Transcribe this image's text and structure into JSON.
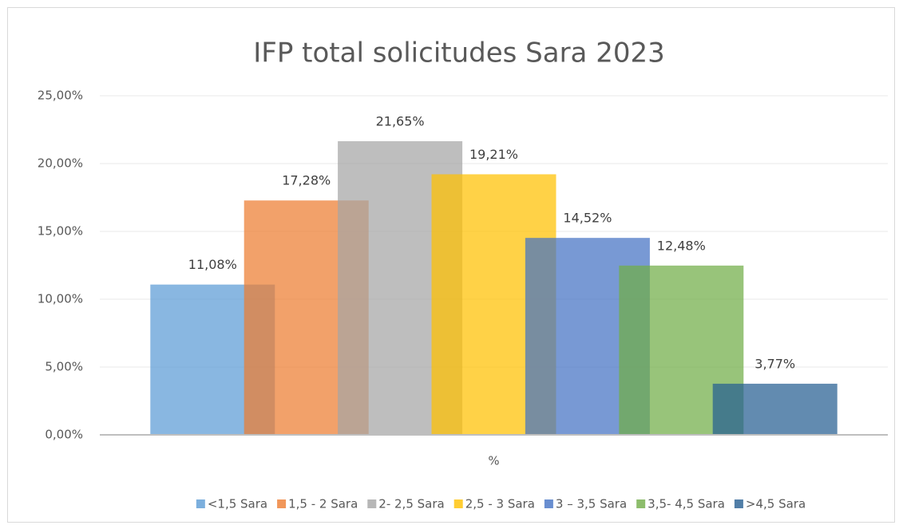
{
  "chart_data": {
    "type": "bar",
    "title": "IFP total solicitudes Sara 2023",
    "categories": [
      "%"
    ],
    "series": [
      {
        "name": "<1,5 Sara",
        "color": "#5b9bd5",
        "values": [
          11.08
        ],
        "value_labels": [
          "11,08%"
        ]
      },
      {
        "name": "1,5 - 2 Sara",
        "color": "#ed7d31",
        "values": [
          17.28
        ],
        "value_labels": [
          "17,28%"
        ]
      },
      {
        "name": "2- 2,5 Sara",
        "color": "#a5a5a5",
        "values": [
          21.65
        ],
        "value_labels": [
          "21,65%"
        ]
      },
      {
        "name": "2,5 - 3 Sara",
        "color": "#ffc000",
        "values": [
          19.21
        ],
        "value_labels": [
          "19,21%"
        ]
      },
      {
        "name": "3 – 3,5 Sara",
        "color": "#4472c4",
        "values": [
          14.52
        ],
        "value_labels": [
          "14,52%"
        ]
      },
      {
        "name": "3,5- 4,5 Sara",
        "color": "#70ad47",
        "values": [
          12.48
        ],
        "value_labels": [
          "12,48%"
        ]
      },
      {
        "name": ">4,5 Sara",
        "color": "#255e91",
        "values": [
          3.77
        ],
        "value_labels": [
          "3,77%"
        ]
      }
    ],
    "ylim": [
      0,
      25
    ],
    "yticks": [
      {
        "value": 0,
        "label": "0,00%"
      },
      {
        "value": 5,
        "label": "5,00%"
      },
      {
        "value": 10,
        "label": "10,00%"
      },
      {
        "value": 15,
        "label": "15,00%"
      },
      {
        "value": 20,
        "label": "20,00%"
      },
      {
        "value": 25,
        "label": "25,00%"
      }
    ],
    "grid": true,
    "legend": "bottom"
  }
}
